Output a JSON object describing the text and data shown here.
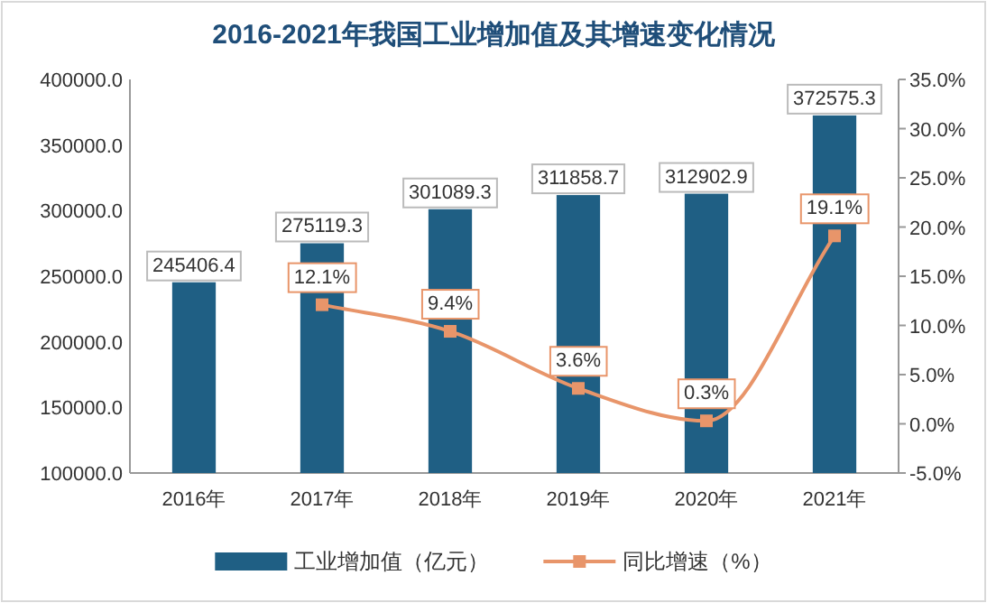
{
  "chart_data": {
    "type": "bar",
    "title": "2016-2021年我国工业增加值及其增速变化情况",
    "categories": [
      "2016年",
      "2017年",
      "2018年",
      "2019年",
      "2020年",
      "2021年"
    ],
    "series": [
      {
        "name": "工业增加值（亿元）",
        "color": "#1f5f84",
        "values": [
          245406.4,
          275119.3,
          301089.3,
          311858.7,
          312902.9,
          372575.3
        ],
        "value_labels": [
          "245406.4",
          "275119.3",
          "301089.3",
          "311858.7",
          "312902.9",
          "372575.3"
        ]
      },
      {
        "name": "同比增速（%）",
        "type": "line",
        "axis": "y2",
        "color": "#e8956a",
        "marker": "square",
        "values": [
          null,
          12.1,
          9.4,
          3.6,
          0.3,
          19.1
        ],
        "value_labels": [
          null,
          "12.1%",
          "9.4%",
          "3.6%",
          "0.3%",
          "19.1%"
        ]
      }
    ],
    "ylim": [
      100000,
      400000
    ],
    "yticks": [
      {
        "value": 100000,
        "label": "100000.0"
      },
      {
        "value": 150000,
        "label": "150000.0"
      },
      {
        "value": 200000,
        "label": "200000.0"
      },
      {
        "value": 250000,
        "label": "250000.0"
      },
      {
        "value": 300000,
        "label": "300000.0"
      },
      {
        "value": 350000,
        "label": "350000.0"
      },
      {
        "value": 400000,
        "label": "400000.0"
      }
    ],
    "y2lim": [
      -5,
      35
    ],
    "y2ticks": [
      {
        "value": -5,
        "label": "-5.0%"
      },
      {
        "value": 0,
        "label": "0.0%"
      },
      {
        "value": 5,
        "label": "5.0%"
      },
      {
        "value": 10,
        "label": "10.0%"
      },
      {
        "value": 15,
        "label": "15.0%"
      },
      {
        "value": 20,
        "label": "20.0%"
      },
      {
        "value": 25,
        "label": "25.0%"
      },
      {
        "value": 30,
        "label": "30.0%"
      },
      {
        "value": 35,
        "label": "35.0%"
      }
    ],
    "grid": false,
    "legend": "bottom"
  }
}
